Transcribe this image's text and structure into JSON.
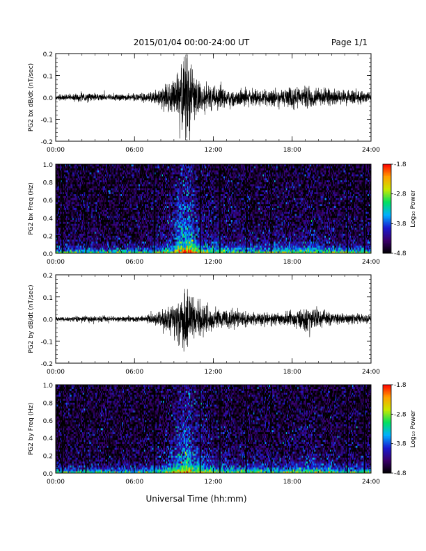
{
  "header": {
    "title": "2015/01/04  00:00-24:00 UT",
    "page": "Page 1/1"
  },
  "xlabel": "Universal Time (hh:mm)",
  "x_ticks": [
    "00:00",
    "06:00",
    "12:00",
    "18:00",
    "24:00"
  ],
  "colorbar": {
    "label": "Log₁₀ Power",
    "ticks": [
      "-1.8",
      "-2.8",
      "-3.8",
      "-4.8"
    ],
    "range": [
      -4.8,
      -1.8
    ],
    "colors": [
      "#000000",
      "#3a006a",
      "#1a1ad0",
      "#00b0ff",
      "#00e060",
      "#c8e800",
      "#ffa000",
      "#ff0000"
    ]
  },
  "chart_data": [
    {
      "type": "line",
      "ylabel": "PG2 bx dB/dt (nT/sec)",
      "xlim": [
        0,
        24
      ],
      "ylim": [
        -0.2,
        0.2
      ],
      "y_ticks": [
        "0.2",
        "0.1",
        "0.0",
        "-0.1",
        "-0.2"
      ],
      "envelope": {
        "x": [
          0,
          1,
          2,
          3,
          4,
          5,
          6,
          7,
          8,
          9,
          9.5,
          10,
          10.5,
          11,
          12,
          13,
          14,
          15,
          16,
          17,
          18,
          19,
          20,
          21,
          22,
          23,
          24
        ],
        "amplitude": [
          0.01,
          0.012,
          0.018,
          0.015,
          0.012,
          0.012,
          0.014,
          0.02,
          0.035,
          0.07,
          0.12,
          0.19,
          0.09,
          0.06,
          0.045,
          0.04,
          0.035,
          0.03,
          0.03,
          0.035,
          0.04,
          0.04,
          0.035,
          0.03,
          0.03,
          0.025,
          0.02
        ]
      }
    },
    {
      "type": "heatmap",
      "ylabel": "PG2 bx Freq (Hz)",
      "xlim": [
        0,
        24
      ],
      "ylim": [
        0,
        1.0
      ],
      "y_ticks": [
        "1.0",
        "0.8",
        "0.6",
        "0.4",
        "0.2",
        "0.0"
      ],
      "zlim": [
        -4.8,
        -1.8
      ],
      "data_gaps_hours": [
        0.5,
        2.3,
        7.5,
        11.0,
        12.5,
        14.5,
        16.4,
        22.2,
        23.5
      ]
    },
    {
      "type": "line",
      "ylabel": "PG2 by dB/dt (nT/sec)",
      "xlim": [
        0,
        24
      ],
      "ylim": [
        -0.2,
        0.2
      ],
      "y_ticks": [
        "0.2",
        "0.1",
        "0.0",
        "-0.1",
        "-0.2"
      ],
      "envelope": {
        "x": [
          0,
          1,
          2,
          3,
          4,
          5,
          6,
          7,
          8,
          9,
          9.5,
          10,
          10.5,
          11,
          12,
          13,
          14,
          15,
          16,
          17,
          18,
          19,
          20,
          21,
          22,
          23,
          24
        ],
        "amplitude": [
          0.008,
          0.01,
          0.012,
          0.012,
          0.01,
          0.01,
          0.012,
          0.015,
          0.03,
          0.07,
          0.1,
          0.13,
          0.08,
          0.07,
          0.04,
          0.035,
          0.03,
          0.025,
          0.025,
          0.025,
          0.03,
          0.05,
          0.04,
          0.025,
          0.02,
          0.02,
          0.015
        ]
      }
    },
    {
      "type": "heatmap",
      "ylabel": "PG2 by Freq (Hz)",
      "xlim": [
        0,
        24
      ],
      "ylim": [
        0,
        1.0
      ],
      "y_ticks": [
        "1.0",
        "0.8",
        "0.6",
        "0.4",
        "0.2",
        "0.0"
      ],
      "zlim": [
        -4.8,
        -1.8
      ],
      "data_gaps_hours": [
        0.5,
        2.3,
        7.5,
        11.0,
        12.5,
        14.5,
        16.4,
        22.2,
        23.5
      ]
    }
  ]
}
